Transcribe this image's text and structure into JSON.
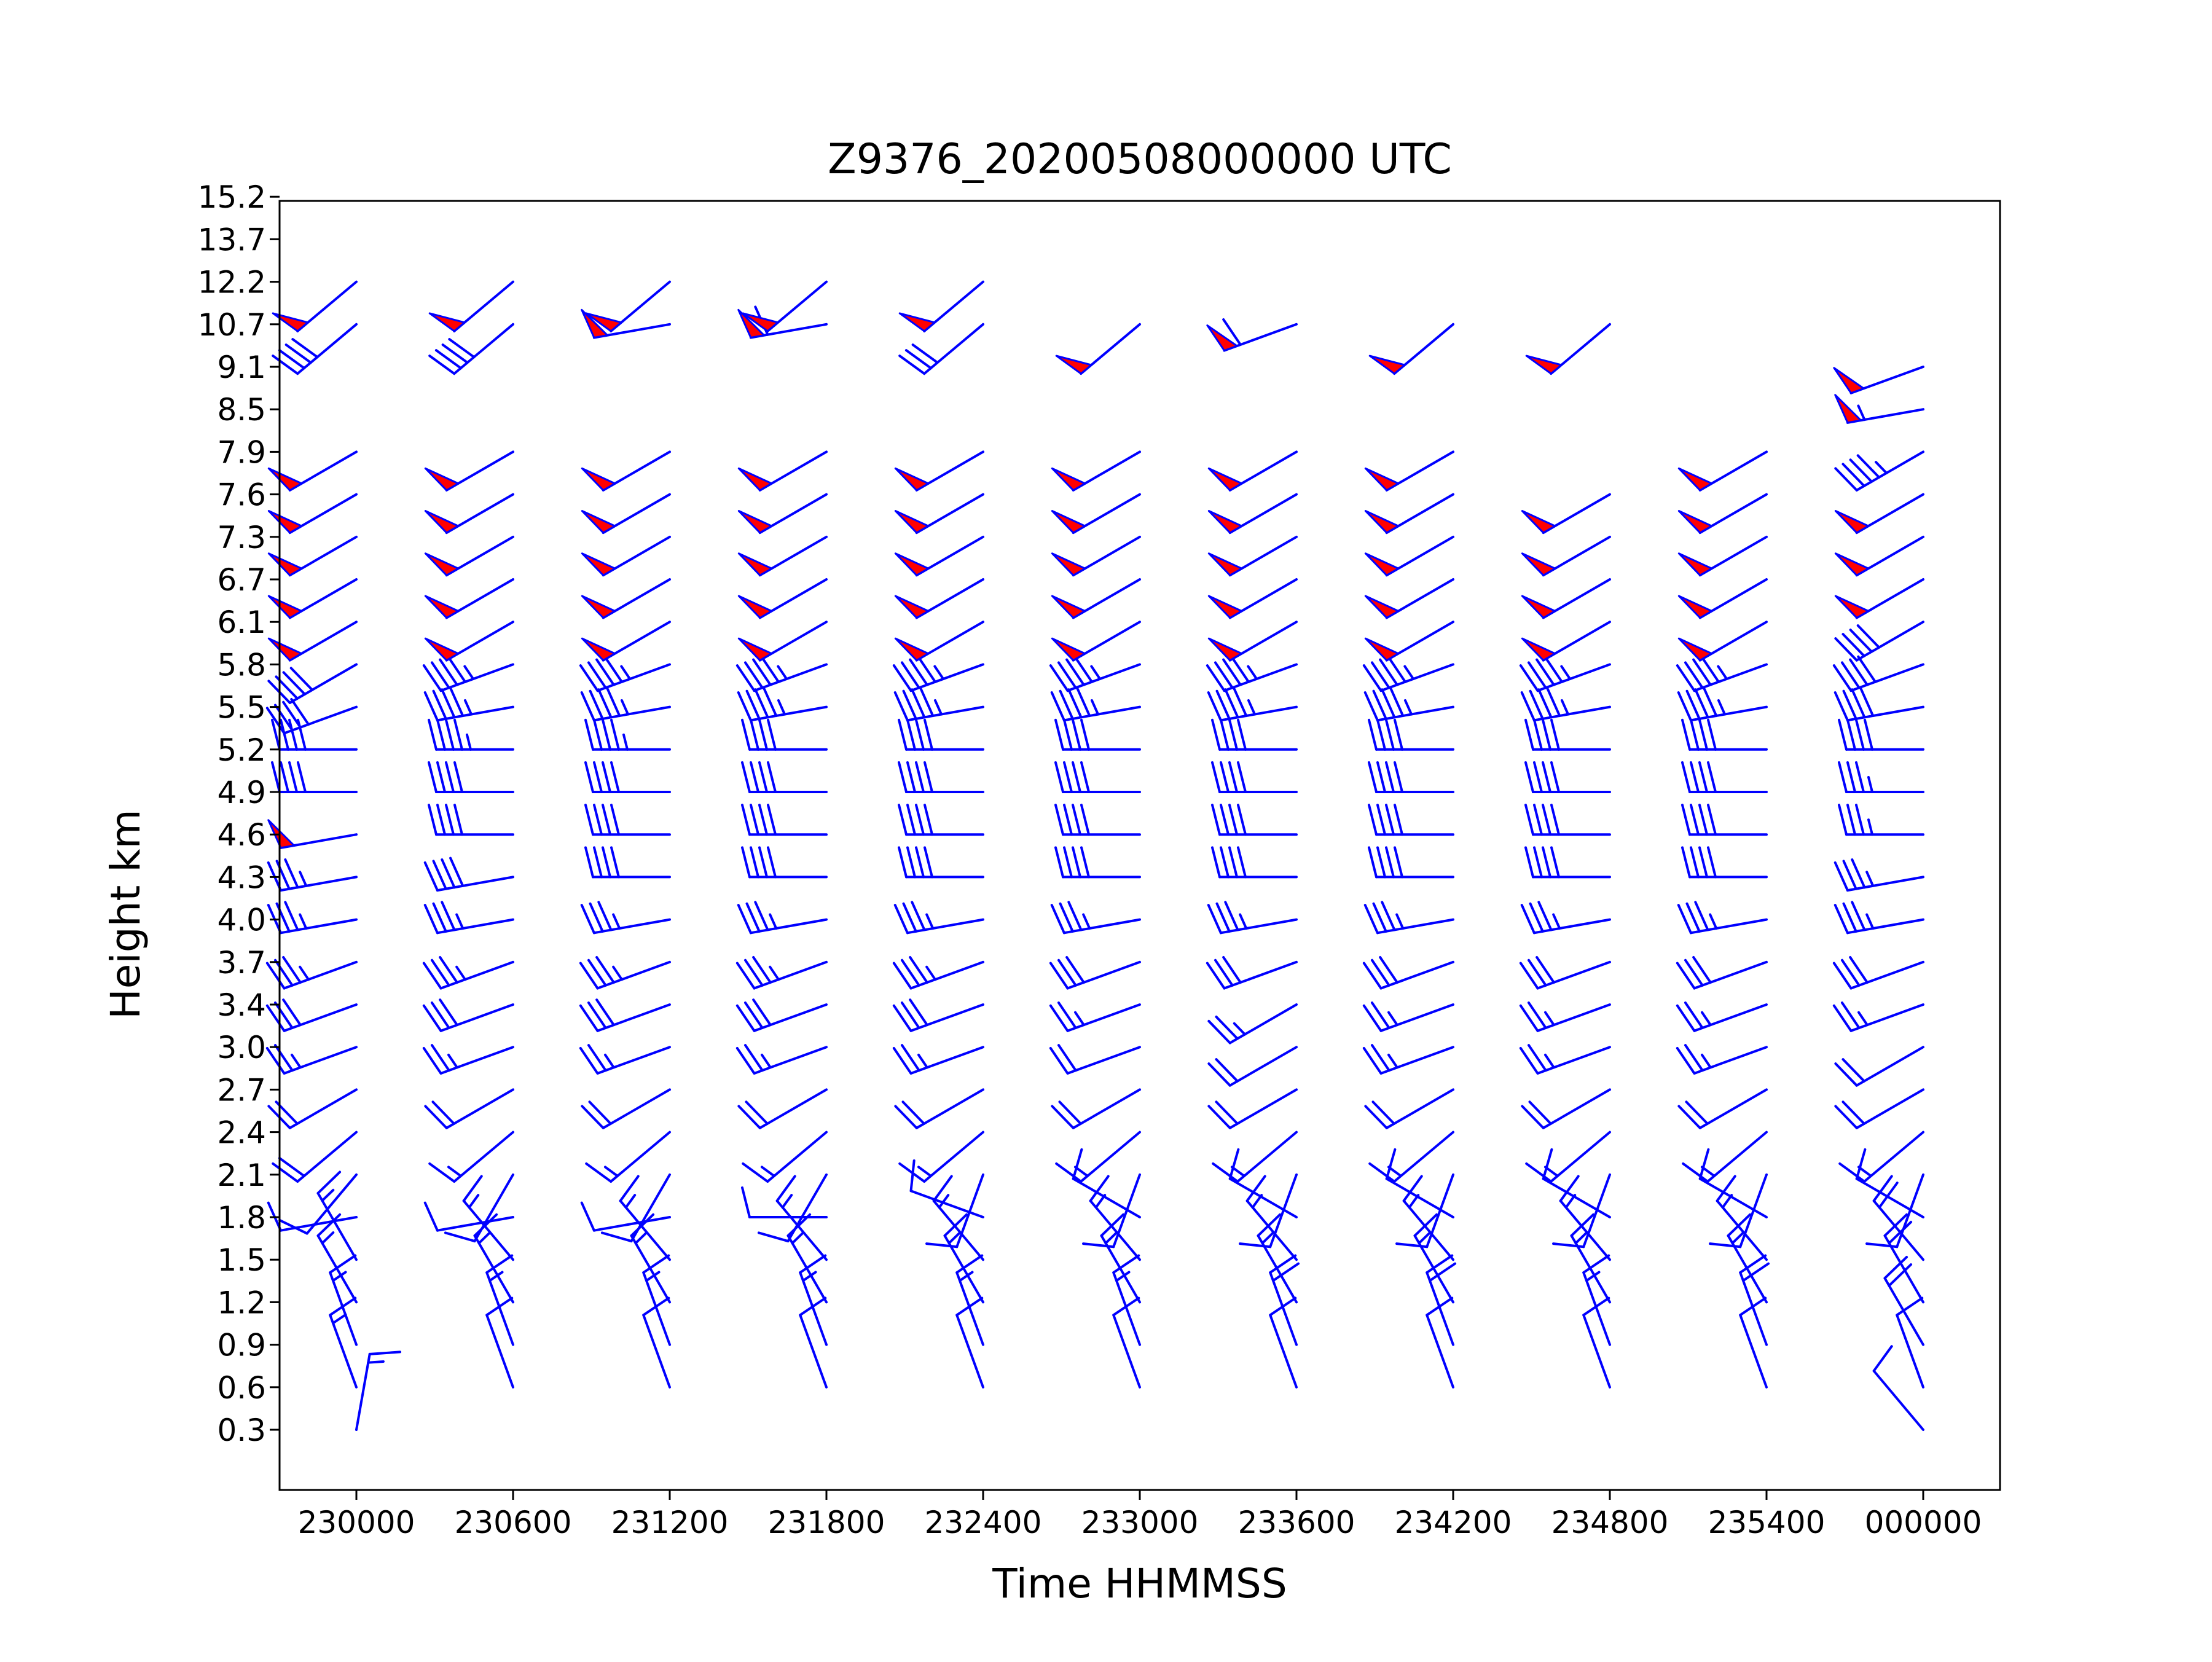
{
  "chart_data": {
    "type": "wind-barb-profile",
    "title": "Z9376_20200508000000 UTC",
    "xlabel": "Time HHMMSS",
    "ylabel": "Height km",
    "x_ticks": [
      "230000",
      "230600",
      "231200",
      "231800",
      "232400",
      "233000",
      "233600",
      "234200",
      "234800",
      "235400",
      "000000"
    ],
    "y_ticks": [
      "0.3",
      "0.6",
      "0.9",
      "1.2",
      "1.5",
      "1.8",
      "2.1",
      "2.4",
      "2.7",
      "3.0",
      "3.4",
      "3.7",
      "4.0",
      "4.3",
      "4.6",
      "4.9",
      "5.2",
      "5.5",
      "5.8",
      "6.1",
      "6.7",
      "7.3",
      "7.6",
      "7.9",
      "8.5",
      "9.1",
      "10.7",
      "12.2",
      "13.7",
      "15.2"
    ],
    "grid": false,
    "colors": {
      "barb": "#0000ff",
      "pennant_fill": "#ff0000",
      "axes": "#000000"
    },
    "barb_units": "m/s (full barb 4, half barb 2, pennant 20)",
    "series": [
      {
        "time": "230000",
        "heights": [
          "0.3",
          "0.6",
          "0.9",
          "1.2",
          "1.5",
          "1.8",
          "2.1",
          "2.4",
          "2.7",
          "3.0",
          "3.4",
          "3.7",
          "4.0",
          "4.3",
          "4.6",
          "4.9",
          "5.2",
          "5.5",
          "5.8",
          "6.1",
          "6.7",
          "7.3",
          "7.6",
          "7.9",
          "10.7",
          "12.2"
        ],
        "speed": [
          6,
          6,
          6,
          6,
          6,
          4,
          4,
          8,
          8,
          10,
          12,
          14,
          14,
          14,
          20,
          16,
          16,
          16,
          16,
          20,
          20,
          20,
          20,
          20,
          16,
          20
        ],
        "direction": [
          10,
          340,
          340,
          330,
          330,
          260,
          220,
          230,
          240,
          250,
          250,
          250,
          260,
          260,
          260,
          270,
          270,
          250,
          240,
          240,
          240,
          240,
          240,
          240,
          230,
          230
        ]
      },
      {
        "time": "230600",
        "heights": [
          "0.6",
          "0.9",
          "1.2",
          "1.5",
          "1.8",
          "2.1",
          "2.4",
          "2.7",
          "3.0",
          "3.4",
          "3.7",
          "4.0",
          "4.3",
          "4.6",
          "4.9",
          "5.2",
          "5.5",
          "5.8",
          "6.1",
          "6.7",
          "7.3",
          "7.6",
          "7.9",
          "10.7",
          "12.2"
        ],
        "speed": [
          4,
          6,
          6,
          6,
          4,
          4,
          6,
          8,
          10,
          12,
          14,
          14,
          16,
          16,
          16,
          18,
          18,
          18,
          20,
          20,
          20,
          20,
          20,
          16,
          20
        ],
        "direction": [
          340,
          340,
          330,
          320,
          260,
          210,
          230,
          240,
          250,
          250,
          250,
          260,
          260,
          270,
          270,
          270,
          260,
          250,
          240,
          240,
          240,
          240,
          240,
          230,
          230
        ]
      },
      {
        "time": "231200",
        "heights": [
          "0.6",
          "0.9",
          "1.2",
          "1.5",
          "1.8",
          "2.1",
          "2.4",
          "2.7",
          "3.0",
          "3.4",
          "3.7",
          "4.0",
          "4.3",
          "4.6",
          "4.9",
          "5.2",
          "5.5",
          "5.8",
          "6.1",
          "6.7",
          "7.3",
          "7.6",
          "7.9",
          "10.7",
          "12.2"
        ],
        "speed": [
          4,
          6,
          6,
          6,
          4,
          4,
          6,
          8,
          10,
          12,
          14,
          14,
          16,
          16,
          16,
          18,
          18,
          18,
          20,
          20,
          20,
          20,
          20,
          20,
          20
        ],
        "direction": [
          340,
          340,
          330,
          320,
          260,
          210,
          230,
          240,
          250,
          250,
          250,
          260,
          270,
          270,
          270,
          270,
          260,
          250,
          240,
          240,
          240,
          240,
          240,
          260,
          230
        ]
      },
      {
        "time": "231800",
        "heights": [
          "0.6",
          "0.9",
          "1.2",
          "1.5",
          "1.8",
          "2.1",
          "2.4",
          "2.7",
          "3.0",
          "3.4",
          "3.7",
          "4.0",
          "4.3",
          "4.6",
          "4.9",
          "5.2",
          "5.5",
          "5.8",
          "6.1",
          "6.7",
          "7.3",
          "7.6",
          "7.9",
          "10.7",
          "12.2"
        ],
        "speed": [
          4,
          6,
          6,
          6,
          4,
          4,
          6,
          8,
          10,
          12,
          14,
          14,
          16,
          16,
          16,
          16,
          18,
          18,
          20,
          20,
          20,
          20,
          20,
          24,
          20
        ],
        "direction": [
          340,
          340,
          330,
          320,
          270,
          210,
          230,
          240,
          250,
          250,
          250,
          260,
          270,
          270,
          270,
          270,
          260,
          250,
          240,
          240,
          240,
          240,
          240,
          260,
          230
        ]
      },
      {
        "time": "232400",
        "heights": [
          "0.6",
          "0.9",
          "1.2",
          "1.5",
          "1.8",
          "2.1",
          "2.4",
          "2.7",
          "3.0",
          "3.4",
          "3.7",
          "4.0",
          "4.3",
          "4.6",
          "4.9",
          "5.2",
          "5.5",
          "5.8",
          "6.1",
          "6.7",
          "7.3",
          "7.6",
          "7.9",
          "10.7",
          "12.2"
        ],
        "speed": [
          4,
          6,
          6,
          6,
          4,
          4,
          6,
          8,
          10,
          12,
          14,
          14,
          16,
          16,
          16,
          16,
          18,
          18,
          20,
          20,
          20,
          20,
          20,
          12,
          20
        ],
        "direction": [
          340,
          340,
          330,
          320,
          290,
          200,
          230,
          240,
          250,
          250,
          250,
          260,
          270,
          270,
          270,
          270,
          260,
          250,
          240,
          240,
          240,
          240,
          240,
          230,
          230
        ]
      },
      {
        "time": "233000",
        "heights": [
          "0.6",
          "0.9",
          "1.2",
          "1.5",
          "1.8",
          "2.1",
          "2.4",
          "2.7",
          "3.0",
          "3.4",
          "3.7",
          "4.0",
          "4.3",
          "4.6",
          "4.9",
          "5.2",
          "5.5",
          "5.8",
          "6.1",
          "6.7",
          "7.3",
          "7.6",
          "7.9",
          "10.7"
        ],
        "speed": [
          4,
          6,
          6,
          6,
          4,
          4,
          6,
          8,
          8,
          10,
          12,
          14,
          16,
          16,
          16,
          16,
          18,
          18,
          20,
          20,
          20,
          20,
          20,
          20
        ],
        "direction": [
          340,
          340,
          330,
          320,
          300,
          200,
          230,
          240,
          250,
          250,
          250,
          260,
          270,
          270,
          270,
          270,
          260,
          250,
          240,
          240,
          240,
          240,
          240,
          230
        ]
      },
      {
        "time": "233600",
        "heights": [
          "0.6",
          "0.9",
          "1.2",
          "1.5",
          "1.8",
          "2.1",
          "2.4",
          "2.7",
          "3.0",
          "3.4",
          "3.7",
          "4.0",
          "4.3",
          "4.6",
          "4.9",
          "5.2",
          "5.5",
          "5.8",
          "6.1",
          "6.7",
          "7.3",
          "7.6",
          "7.9",
          "10.7"
        ],
        "speed": [
          4,
          8,
          6,
          6,
          4,
          4,
          6,
          8,
          8,
          10,
          12,
          14,
          16,
          16,
          16,
          16,
          18,
          18,
          20,
          20,
          20,
          20,
          20,
          24
        ],
        "direction": [
          340,
          340,
          330,
          320,
          300,
          200,
          230,
          240,
          240,
          240,
          250,
          260,
          270,
          270,
          270,
          270,
          260,
          250,
          240,
          240,
          240,
          240,
          240,
          250
        ]
      },
      {
        "time": "234200",
        "heights": [
          "0.6",
          "0.9",
          "1.2",
          "1.5",
          "1.8",
          "2.1",
          "2.4",
          "2.7",
          "3.0",
          "3.4",
          "3.7",
          "4.0",
          "4.3",
          "4.6",
          "4.9",
          "5.2",
          "5.5",
          "5.8",
          "6.1",
          "6.7",
          "7.3",
          "7.6",
          "7.9",
          "10.7"
        ],
        "speed": [
          4,
          8,
          6,
          6,
          4,
          4,
          6,
          8,
          10,
          10,
          12,
          14,
          16,
          16,
          16,
          16,
          18,
          18,
          20,
          20,
          20,
          20,
          20,
          20
        ],
        "direction": [
          340,
          340,
          330,
          320,
          300,
          200,
          230,
          240,
          250,
          250,
          250,
          260,
          270,
          270,
          270,
          270,
          260,
          250,
          240,
          240,
          240,
          240,
          240,
          230
        ]
      },
      {
        "time": "234800",
        "heights": [
          "0.6",
          "0.9",
          "1.2",
          "1.5",
          "1.8",
          "2.1",
          "2.4",
          "2.7",
          "3.0",
          "3.4",
          "3.7",
          "4.0",
          "4.3",
          "4.6",
          "4.9",
          "5.2",
          "5.5",
          "5.8",
          "6.1",
          "6.7",
          "7.3",
          "7.6",
          "10.7"
        ],
        "speed": [
          4,
          6,
          6,
          6,
          4,
          4,
          6,
          8,
          10,
          10,
          12,
          14,
          16,
          16,
          16,
          16,
          18,
          18,
          20,
          20,
          20,
          20,
          20
        ],
        "direction": [
          340,
          340,
          330,
          320,
          300,
          200,
          230,
          240,
          250,
          250,
          250,
          260,
          270,
          270,
          270,
          270,
          260,
          250,
          240,
          240,
          240,
          240,
          230
        ]
      },
      {
        "time": "235400",
        "heights": [
          "0.6",
          "0.9",
          "1.2",
          "1.5",
          "1.8",
          "2.1",
          "2.4",
          "2.7",
          "3.0",
          "3.4",
          "3.7",
          "4.0",
          "4.3",
          "4.6",
          "4.9",
          "5.2",
          "5.5",
          "5.8",
          "6.1",
          "6.7",
          "7.3",
          "7.6",
          "7.9"
        ],
        "speed": [
          4,
          8,
          6,
          6,
          4,
          4,
          6,
          8,
          10,
          10,
          12,
          14,
          16,
          16,
          16,
          16,
          18,
          18,
          20,
          20,
          20,
          20,
          20
        ],
        "direction": [
          340,
          340,
          330,
          320,
          300,
          200,
          230,
          240,
          250,
          250,
          250,
          260,
          270,
          270,
          270,
          270,
          260,
          250,
          240,
          240,
          240,
          240,
          240
        ]
      },
      {
        "time": "000000",
        "heights": [
          "0.3",
          "0.6",
          "0.9",
          "1.2",
          "1.5",
          "1.8",
          "2.1",
          "2.4",
          "2.7",
          "3.0",
          "3.4",
          "3.7",
          "4.0",
          "4.3",
          "4.6",
          "4.9",
          "5.2",
          "5.5",
          "5.8",
          "6.1",
          "6.7",
          "7.3",
          "7.6",
          "7.9",
          "8.5",
          "9.1"
        ],
        "speed": [
          4,
          4,
          8,
          8,
          8,
          4,
          4,
          6,
          8,
          8,
          10,
          12,
          14,
          14,
          14,
          14,
          16,
          16,
          16,
          16,
          20,
          20,
          20,
          18,
          22,
          20
        ],
        "direction": [
          320,
          340,
          330,
          330,
          320,
          300,
          200,
          230,
          240,
          240,
          250,
          250,
          260,
          260,
          270,
          270,
          270,
          260,
          250,
          240,
          240,
          240,
          240,
          240,
          260,
          250
        ]
      }
    ]
  }
}
